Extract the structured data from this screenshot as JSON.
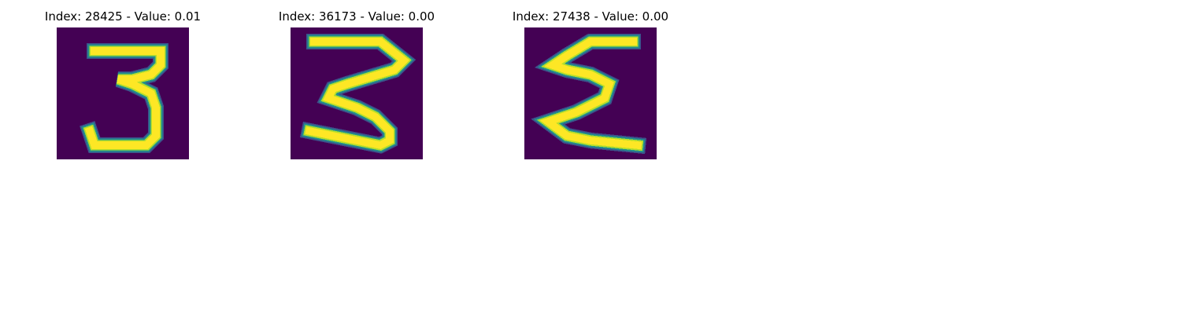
{
  "colors": {
    "background": "#440154",
    "stroke_core": "#fde725",
    "stroke_mid": "#b5de2b",
    "stroke_edge": "#21918c",
    "stroke_outer": "#3b528b"
  },
  "panels": [
    {
      "title": "Index: 28425 - Value: 0.01",
      "digit": "3"
    },
    {
      "title": "Index: 36173 - Value: 0.00",
      "digit": "3"
    },
    {
      "title": "Index: 27438 - Value: 0.00",
      "digit": "3"
    }
  ]
}
